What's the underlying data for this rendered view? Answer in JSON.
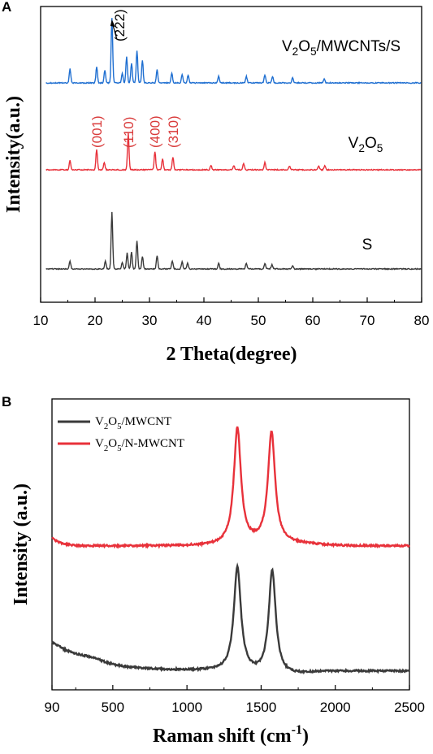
{
  "figure": {
    "panel_a_letter": "A",
    "panel_b_letter": "B",
    "peak_marker": "(222)"
  },
  "colors": {
    "blue": "#1f6fd1",
    "red": "#e8313a",
    "gray": "#3a3a3a",
    "peak_label": "#d93a3a"
  },
  "chart_data": [
    {
      "type": "line",
      "panel": "A",
      "title": "",
      "xlabel": "2 Theta(degree)",
      "ylabel": "Intensity(a.u.)",
      "xlim": [
        10,
        80
      ],
      "xticks": [
        10,
        20,
        30,
        40,
        50,
        60,
        70,
        80
      ],
      "grid": false,
      "series": [
        {
          "name": "V2O5/MWCNTs/S",
          "label_parts": [
            "V",
            "2",
            "O",
            "5",
            "/MWCNTs/S"
          ],
          "color": "#1f6fd1",
          "x": [
            15.4,
            20.3,
            21.8,
            23.1,
            25.0,
            25.8,
            26.7,
            27.7,
            28.7,
            31.4,
            34.1,
            36.0,
            37.1,
            42.7,
            47.8,
            51.2,
            52.6,
            56.3,
            62.1
          ],
          "values": [
            0.22,
            0.25,
            0.2,
            1.0,
            0.15,
            0.4,
            0.3,
            0.5,
            0.35,
            0.2,
            0.15,
            0.12,
            0.12,
            0.1,
            0.1,
            0.12,
            0.1,
            0.08,
            0.06
          ]
        },
        {
          "name": "V2O5",
          "label_parts": [
            "V",
            "2",
            "O",
            "5",
            ""
          ],
          "color": "#e8313a",
          "x": [
            15.4,
            20.3,
            21.7,
            26.1,
            31.0,
            32.4,
            34.3,
            41.3,
            45.5,
            47.3,
            51.2,
            55.7,
            61.1,
            62.2
          ],
          "values": [
            0.25,
            0.55,
            0.2,
            1.0,
            0.5,
            0.3,
            0.35,
            0.12,
            0.12,
            0.18,
            0.2,
            0.1,
            0.1,
            0.12
          ],
          "peak_labels": [
            {
              "x": 20.3,
              "text": "(001)"
            },
            {
              "x": 26.1,
              "text": "(110)"
            },
            {
              "x": 31.0,
              "text": "(400)"
            },
            {
              "x": 34.3,
              "text": "(310)"
            }
          ]
        },
        {
          "name": "S",
          "label_parts": [
            "S",
            "",
            "",
            "",
            ""
          ],
          "color": "#3a3a3a",
          "x": [
            15.4,
            21.9,
            23.1,
            25.0,
            25.9,
            26.7,
            27.7,
            28.7,
            31.4,
            34.2,
            36.0,
            37.0,
            42.7,
            47.8,
            51.2,
            52.5,
            56.3
          ],
          "values": [
            0.14,
            0.14,
            1.0,
            0.12,
            0.28,
            0.3,
            0.5,
            0.22,
            0.24,
            0.14,
            0.12,
            0.1,
            0.1,
            0.1,
            0.1,
            0.08,
            0.06
          ]
        }
      ]
    },
    {
      "type": "line",
      "panel": "B",
      "title": "",
      "xlabel_main": "Raman shift ",
      "xlabel_unit": "(cm",
      "xlabel_sup": "-1",
      "xlabel_close": ")",
      "ylabel": "Intensity (a.u.)",
      "xlim": [
        90,
        2500
      ],
      "xticks": [
        90,
        500,
        1000,
        1500,
        2000,
        2500
      ],
      "grid": false,
      "legend": "top-left",
      "series": [
        {
          "name": "V2O5/MWCNT",
          "label_parts": [
            "V",
            "2",
            "O",
            "5",
            "/MWCNT"
          ],
          "color": "#3a3a3a",
          "peaks": [
            {
              "x": 1340,
              "height": 1.0
            },
            {
              "x": 1575,
              "height": 1.0
            }
          ]
        },
        {
          "name": "V2O5/N-MWCNT",
          "label_parts": [
            "V",
            "2",
            "O",
            "5",
            "/N-MWCNT"
          ],
          "color": "#e8313a",
          "peaks": [
            {
              "x": 1340,
              "height": 1.0
            },
            {
              "x": 1570,
              "height": 0.96
            }
          ]
        }
      ]
    }
  ]
}
